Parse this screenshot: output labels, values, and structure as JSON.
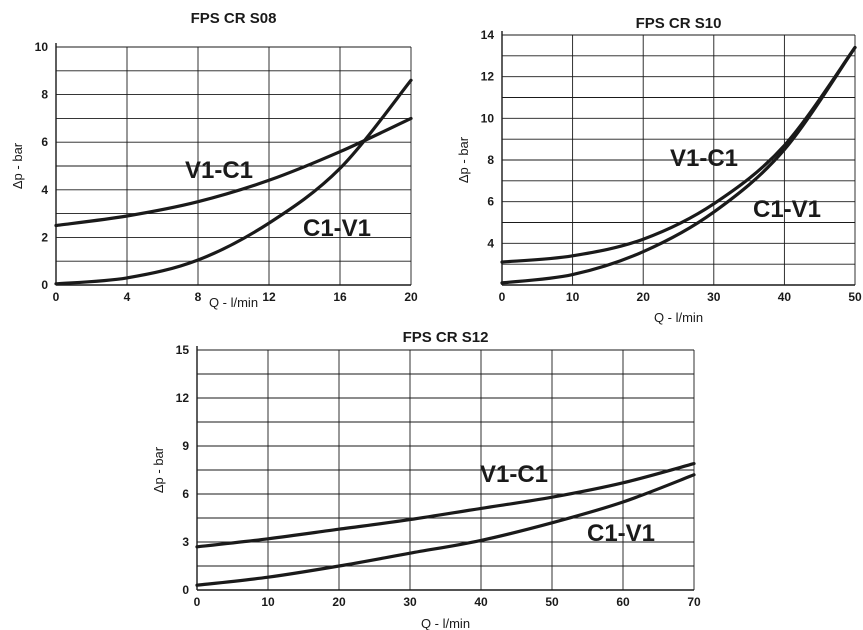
{
  "colors": {
    "ink": "#1a1a1a",
    "background": "#ffffff"
  },
  "chart_data": [
    {
      "type": "line",
      "title": "FPS CR S08",
      "xlabel": "Q - l/min",
      "ylabel": "Δp - bar",
      "xlim": [
        0,
        20
      ],
      "ylim": [
        0,
        10
      ],
      "x_ticks": [
        0,
        4,
        8,
        12,
        16,
        20
      ],
      "y_ticks": [
        0,
        2,
        4,
        6,
        8,
        10
      ],
      "x_grid": [
        0,
        4,
        8,
        12,
        16,
        20
      ],
      "y_grid": [
        0,
        1,
        2,
        3,
        4,
        5,
        6,
        7,
        8,
        9,
        10
      ],
      "grid": true,
      "series": [
        {
          "name": "V1-C1",
          "x": [
            0,
            4,
            8,
            12,
            16,
            20
          ],
          "y": [
            2.5,
            2.9,
            3.5,
            4.4,
            5.6,
            7.0
          ]
        },
        {
          "name": "C1-V1",
          "x": [
            0,
            4,
            8,
            12,
            16,
            20
          ],
          "y": [
            0.05,
            0.3,
            1.05,
            2.6,
            4.9,
            8.6
          ]
        }
      ]
    },
    {
      "type": "line",
      "title": "FPS CR S10",
      "xlabel": "Q - l/min",
      "ylabel": "Δp - bar",
      "xlim": [
        0,
        50
      ],
      "ylim": [
        2,
        14
      ],
      "x_ticks": [
        0,
        10,
        20,
        30,
        40,
        50
      ],
      "y_ticks": [
        4,
        6,
        8,
        10,
        12,
        14
      ],
      "x_grid": [
        0,
        10,
        20,
        30,
        40,
        50
      ],
      "y_grid": [
        2,
        3,
        4,
        5,
        6,
        7,
        8,
        9,
        10,
        11,
        12,
        13,
        14
      ],
      "grid": true,
      "series": [
        {
          "name": "V1-C1",
          "x": [
            0,
            10,
            20,
            30,
            40,
            50
          ],
          "y": [
            3.1,
            3.4,
            4.2,
            5.9,
            8.7,
            13.4
          ]
        },
        {
          "name": "C1-V1",
          "x": [
            0,
            10,
            20,
            30,
            40,
            50
          ],
          "y": [
            2.1,
            2.5,
            3.6,
            5.5,
            8.5,
            13.4
          ]
        }
      ]
    },
    {
      "type": "line",
      "title": "FPS CR S12",
      "xlabel": "Q - l/min",
      "ylabel": "Δp - bar",
      "xlim": [
        0,
        70
      ],
      "ylim": [
        0,
        15
      ],
      "x_ticks": [
        0,
        10,
        20,
        30,
        40,
        50,
        60,
        70
      ],
      "y_ticks": [
        0,
        3,
        6,
        9,
        12,
        15
      ],
      "x_grid": [
        0,
        10,
        20,
        30,
        40,
        50,
        60,
        70
      ],
      "y_grid": [
        0,
        1.5,
        3,
        4.5,
        6,
        7.5,
        9,
        10.5,
        12,
        13.5,
        15
      ],
      "grid": true,
      "series": [
        {
          "name": "V1-C1",
          "x": [
            0,
            10,
            20,
            30,
            40,
            50,
            60,
            70
          ],
          "y": [
            2.7,
            3.2,
            3.8,
            4.4,
            5.1,
            5.8,
            6.7,
            7.9
          ]
        },
        {
          "name": "C1-V1",
          "x": [
            0,
            10,
            20,
            30,
            40,
            50,
            60,
            70
          ],
          "y": [
            0.3,
            0.8,
            1.5,
            2.3,
            3.1,
            4.2,
            5.5,
            7.2
          ]
        }
      ]
    }
  ]
}
